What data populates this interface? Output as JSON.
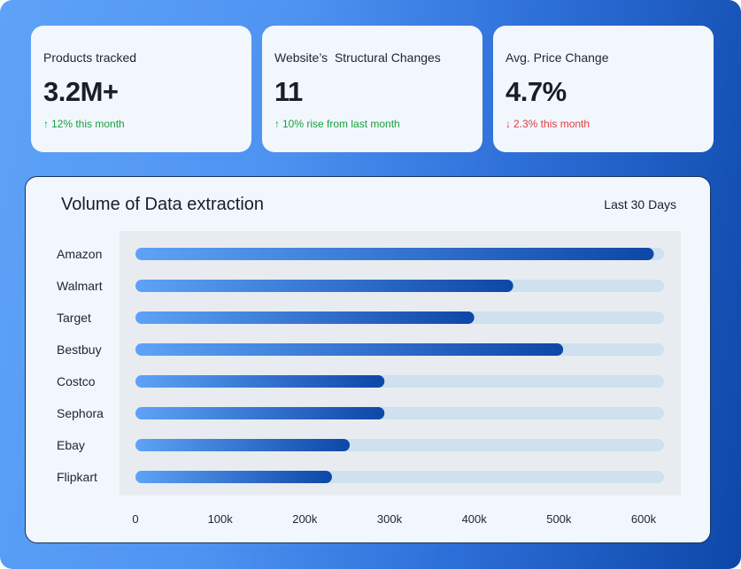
{
  "stats": [
    {
      "label": "Products tracked",
      "value": "3.2M+",
      "delta": "12% this month",
      "direction": "up",
      "arrow": "↑"
    },
    {
      "label": "Website’s  Structural Changes",
      "value": "11",
      "delta": "10% rise from last month",
      "direction": "up",
      "arrow": "↑"
    },
    {
      "label": "Avg. Price Change",
      "value": "4.7%",
      "delta": "2.3% this month",
      "direction": "down",
      "arrow": "↓"
    }
  ],
  "chart_data": {
    "type": "bar",
    "orientation": "horizontal",
    "title": "Volume of Data extraction",
    "range_label": "Last 30 Days",
    "categories": [
      "Amazon",
      "Walmart",
      "Target",
      "Bestbuy",
      "Costco",
      "Sephora",
      "Ebay",
      "Flipkart"
    ],
    "values": [
      612000,
      446000,
      400000,
      505000,
      294000,
      294000,
      253000,
      232000
    ],
    "xlim": [
      0,
      600000
    ],
    "ticks": [
      0,
      100000,
      200000,
      300000,
      400000,
      500000,
      600000
    ],
    "tick_labels": [
      "0",
      "100k",
      "200k",
      "300k",
      "400k",
      "500k",
      "600k"
    ],
    "xlabel": "",
    "ylabel": "",
    "colors": {
      "track": "#cfe0ee",
      "bar_start": "#5ea3f7",
      "bar_end": "#0d47a8"
    }
  }
}
